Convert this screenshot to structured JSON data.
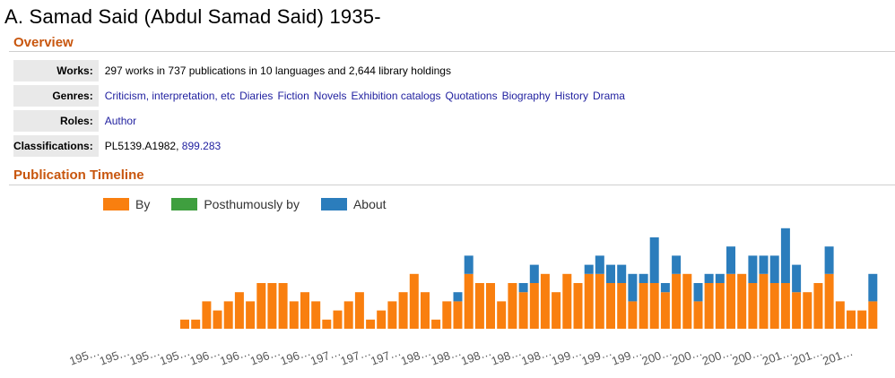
{
  "title": "A. Samad Said (Abdul Samad Said) 1935-",
  "overview": {
    "heading": "Overview",
    "works_label": "Works:",
    "works_value": "297 works in 737 publications in 10 languages and 2,644 library holdings",
    "genres_label": "Genres:",
    "genres": [
      "Criticism, interpretation, etc",
      "Diaries",
      "Fiction",
      "Novels",
      "Exhibition catalogs",
      "Quotations",
      "Biography",
      "History",
      "Drama"
    ],
    "roles_label": "Roles:",
    "roles": [
      "Author"
    ],
    "classifications_label": "Classifications:",
    "classification_plain": "PL5139.A1982,",
    "classification_link": "899.283"
  },
  "timeline": {
    "heading": "Publication Timeline",
    "legend": [
      {
        "label": "By",
        "color": "#f97f0f"
      },
      {
        "label": "Posthumously by",
        "color": "#3f9f3f"
      },
      {
        "label": "About",
        "color": "#2b7dbc"
      }
    ]
  },
  "chart_data": {
    "type": "bar",
    "stacked": true,
    "x_tick_labels": [
      "195…",
      "195…",
      "195…",
      "195…",
      "196…",
      "196…",
      "196…",
      "196…",
      "197…",
      "197…",
      "197…",
      "198…",
      "198…",
      "198…",
      "198…",
      "198…",
      "199…",
      "199…",
      "199…",
      "200…",
      "200…",
      "200…",
      "200…",
      "201…",
      "201…",
      "201…"
    ],
    "series": [
      {
        "name": "By",
        "color": "#f97f0f",
        "values": [
          1,
          1,
          3,
          2,
          3,
          4,
          3,
          5,
          5,
          5,
          3,
          4,
          3,
          1,
          2,
          3,
          4,
          1,
          2,
          3,
          4,
          6,
          4,
          1,
          3,
          3,
          6,
          5,
          5,
          3,
          5,
          4,
          5,
          6,
          4,
          6,
          5,
          6,
          6,
          5,
          5,
          3,
          5,
          5,
          4,
          6,
          6,
          3,
          5,
          5,
          6,
          6,
          5,
          6,
          5,
          5,
          4,
          4,
          5,
          6,
          3,
          2,
          2,
          3
        ]
      },
      {
        "name": "Posthumously by",
        "color": "#3f9f3f",
        "values": [
          0,
          0,
          0,
          0,
          0,
          0,
          0,
          0,
          0,
          0,
          0,
          0,
          0,
          0,
          0,
          0,
          0,
          0,
          0,
          0,
          0,
          0,
          0,
          0,
          0,
          0,
          0,
          0,
          0,
          0,
          0,
          0,
          0,
          0,
          0,
          0,
          0,
          0,
          0,
          0,
          0,
          0,
          0,
          0,
          0,
          0,
          0,
          0,
          0,
          0,
          0,
          0,
          0,
          0,
          0,
          0,
          0,
          0,
          0,
          0,
          0,
          0,
          0,
          0
        ]
      },
      {
        "name": "About",
        "color": "#2b7dbc",
        "values": [
          0,
          0,
          0,
          0,
          0,
          0,
          0,
          0,
          0,
          0,
          0,
          0,
          0,
          0,
          0,
          0,
          0,
          0,
          0,
          0,
          0,
          0,
          0,
          0,
          0,
          1,
          2,
          0,
          0,
          0,
          0,
          1,
          2,
          0,
          0,
          0,
          0,
          1,
          2,
          2,
          2,
          3,
          1,
          5,
          1,
          2,
          0,
          2,
          1,
          1,
          3,
          0,
          3,
          2,
          3,
          6,
          3,
          0,
          0,
          3,
          0,
          0,
          0,
          3
        ]
      }
    ],
    "ylim": [
      0,
      11
    ]
  }
}
